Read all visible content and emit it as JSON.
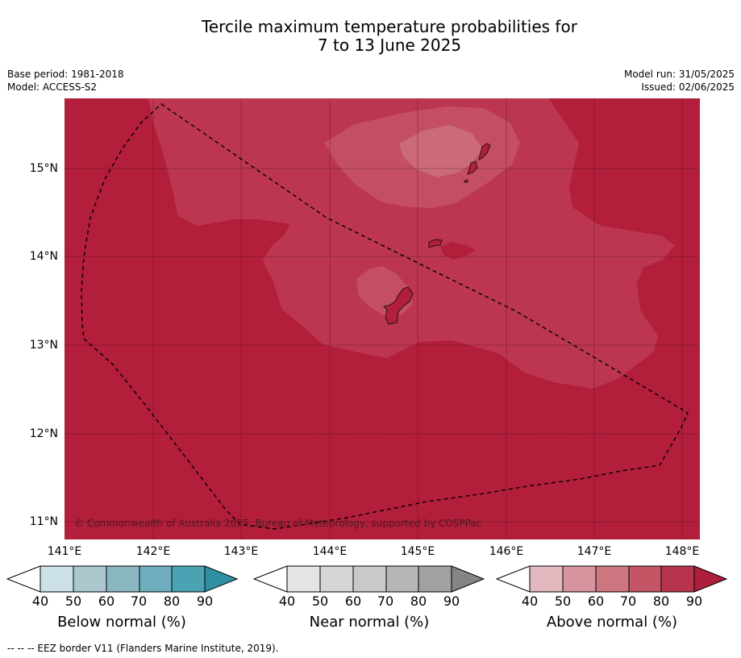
{
  "title_line1": "Tercile maximum temperature probabilities for",
  "title_line2": "7 to 13 June 2025",
  "base_period": "Base period: 1981-2018",
  "model": "Model: ACCESS-S2",
  "model_run": "Model run: 31/05/2025",
  "issued": "Issued: 02/06/2025",
  "lat_labels": [
    "15°N",
    "14°N",
    "13°N",
    "12°N",
    "11°N"
  ],
  "lon_labels": [
    "141°E",
    "142°E",
    "143°E",
    "144°E",
    "145°E",
    "146°E",
    "147°E",
    "148°E"
  ],
  "copyright": "© Commonwealth of Australia 2025, Bureau of Meteorology, supported by COSPPac",
  "colorbars": [
    {
      "title": "Below normal (%)",
      "ticks": [
        "40",
        "50",
        "60",
        "70",
        "80",
        "90"
      ],
      "colors": [
        "#cbe1e7",
        "#a9c7cc",
        "#8ab6c1",
        "#6eaebe",
        "#4aa2b3",
        "#2f8fa3"
      ]
    },
    {
      "title": "Near normal (%)",
      "ticks": [
        "40",
        "50",
        "60",
        "70",
        "80",
        "90"
      ],
      "colors": [
        "#e4e4e4",
        "#d6d6d6",
        "#c9c9c9",
        "#b6b6b6",
        "#a1a1a1",
        "#858585"
      ]
    },
    {
      "title": "Above normal (%)",
      "ticks": [
        "40",
        "50",
        "60",
        "70",
        "80",
        "90"
      ],
      "colors": [
        "#e3b9bf",
        "#d6959e",
        "#cc7680",
        "#c35565",
        "#b8334c",
        "#ad1f3c"
      ]
    }
  ],
  "footnote": "--  --  -- EEZ border V11 (Flanders Marine Institute, 2019).",
  "map_colors": {
    "above_90": "#b31e3a",
    "above_80": "#bc3650",
    "above_70": "#c44f63",
    "above_60": "#cb6b77"
  }
}
